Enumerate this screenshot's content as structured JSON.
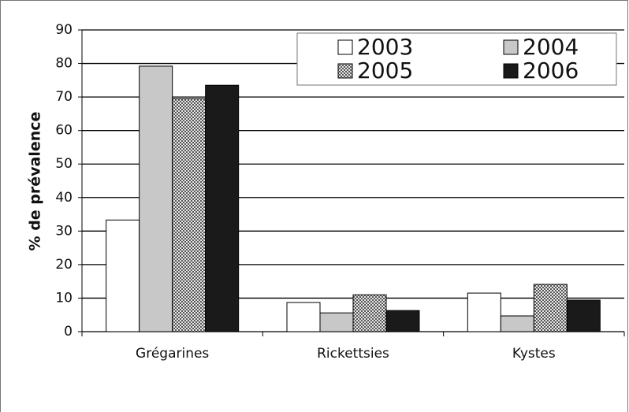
{
  "chart_data": {
    "type": "bar",
    "y_label": "% de prévalence",
    "categories": [
      "Grégarines",
      "Rickettsies",
      "Kystes"
    ],
    "series": [
      {
        "name": "2003",
        "color": "#ffffff",
        "values": [
          33.3,
          8.7,
          11.5
        ]
      },
      {
        "name": "2004",
        "color": "#c8c8c8",
        "values": [
          79.2,
          5.6,
          4.7
        ]
      },
      {
        "name": "2005",
        "color": "#9a9a9a",
        "pattern": "checker",
        "values": [
          69.5,
          11,
          14.1
        ]
      },
      {
        "name": "2006",
        "color": "#1a1a1a",
        "values": [
          73.5,
          6.3,
          9.4
        ]
      }
    ],
    "ylim": [
      0,
      90
    ],
    "yticks": [
      0,
      10,
      20,
      30,
      40,
      50,
      60,
      70,
      80,
      90
    ],
    "grid": true,
    "legend": "top-right"
  }
}
